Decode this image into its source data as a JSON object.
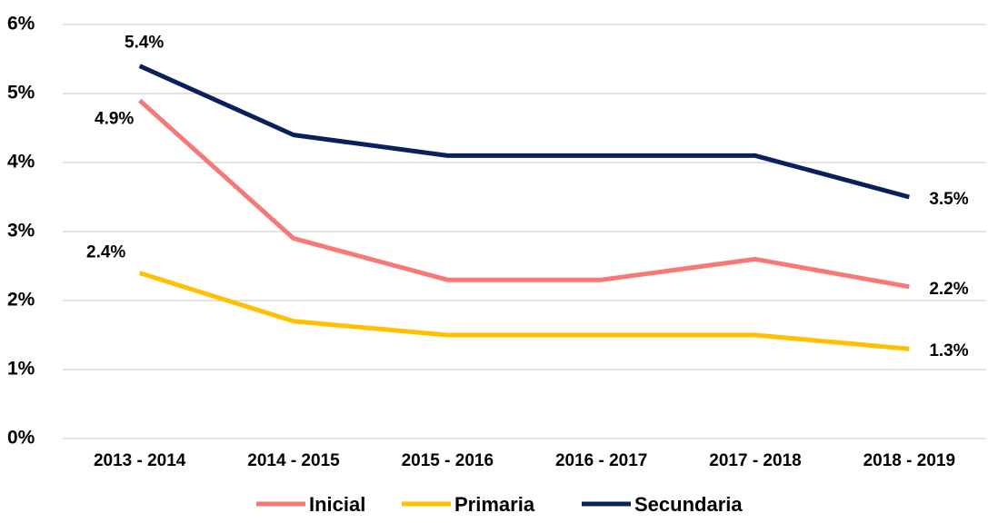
{
  "chart_data": {
    "type": "line",
    "categories": [
      "2013 - 2014",
      "2014 - 2015",
      "2015 - 2016",
      "2016 - 2017",
      "2017 - 2018",
      "2018 - 2019"
    ],
    "series": [
      {
        "name": "Inicial",
        "color": "#f87878",
        "values": [
          4.9,
          2.9,
          2.3,
          2.3,
          2.6,
          2.2
        ],
        "value_labels": [
          "4.9%",
          null,
          null,
          null,
          null,
          "2.2%"
        ]
      },
      {
        "name": "Primaria",
        "color": "#ffc000",
        "values": [
          2.4,
          1.7,
          1.5,
          1.5,
          1.5,
          1.3
        ],
        "value_labels": [
          "2.4%",
          null,
          null,
          null,
          null,
          "1.3%"
        ]
      },
      {
        "name": "Secundaria",
        "color": "#0b1f5c",
        "values": [
          5.4,
          4.4,
          4.1,
          4.1,
          4.1,
          3.5
        ],
        "value_labels": [
          "5.4%",
          null,
          null,
          null,
          null,
          "3.5%"
        ]
      }
    ],
    "ylim": [
      0,
      6
    ],
    "yticks": [
      {
        "value": 0,
        "label": "0%"
      },
      {
        "value": 1,
        "label": "1%"
      },
      {
        "value": 2,
        "label": "2%"
      },
      {
        "value": 3,
        "label": "3%"
      },
      {
        "value": 4,
        "label": "4%"
      },
      {
        "value": 5,
        "label": "5%"
      },
      {
        "value": 6,
        "label": "6%"
      }
    ],
    "grid": true,
    "legend": "bottom"
  }
}
